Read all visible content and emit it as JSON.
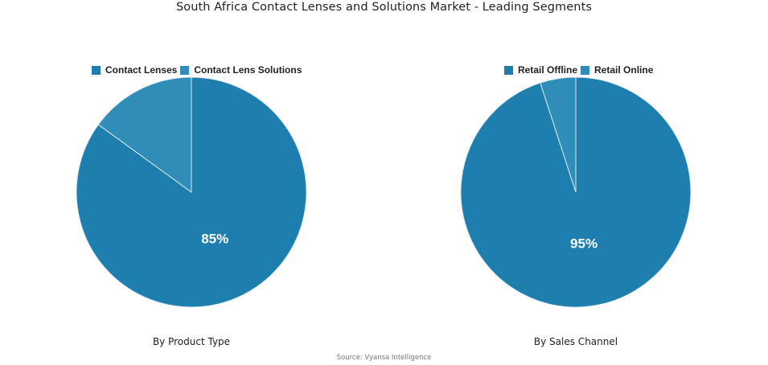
{
  "title": "South Africa Contact Lenses and Solutions Market - Leading Segments",
  "source": "Source: Vyansa Intelligence",
  "colors": {
    "primary": "#1e7fae",
    "secondary": "#2f8db8",
    "separator": "#dbe9f1"
  },
  "charts": [
    {
      "caption": "By Product Type",
      "legend": [
        {
          "label": "Contact Lenses",
          "color": "#1e7fae"
        },
        {
          "label": "Contact Lens Solutions",
          "color": "#2f8db8"
        }
      ],
      "label": "85%"
    },
    {
      "caption": "By Sales Channel",
      "legend": [
        {
          "label": "Retail Offline",
          "color": "#1e7fae"
        },
        {
          "label": "Retail Online",
          "color": "#2f8db8"
        }
      ],
      "label": "95%"
    }
  ],
  "chart_data": [
    {
      "type": "pie",
      "title": "By Product Type",
      "categories": [
        "Contact Lenses",
        "Contact Lens Solutions"
      ],
      "values": [
        85,
        15
      ],
      "colors": [
        "#1e7fae",
        "#2f8db8"
      ],
      "data_labels": [
        "85%",
        ""
      ],
      "legend_position": "top",
      "center": [
        238,
        239
      ],
      "radius": 143
    },
    {
      "type": "pie",
      "title": "By Sales Channel",
      "categories": [
        "Retail Offline",
        "Retail Online"
      ],
      "values": [
        95,
        5
      ],
      "colors": [
        "#1e7fae",
        "#2f8db8"
      ],
      "data_labels": [
        "95%",
        ""
      ],
      "legend_position": "top",
      "center": [
        716,
        239
      ],
      "radius": 143
    }
  ]
}
